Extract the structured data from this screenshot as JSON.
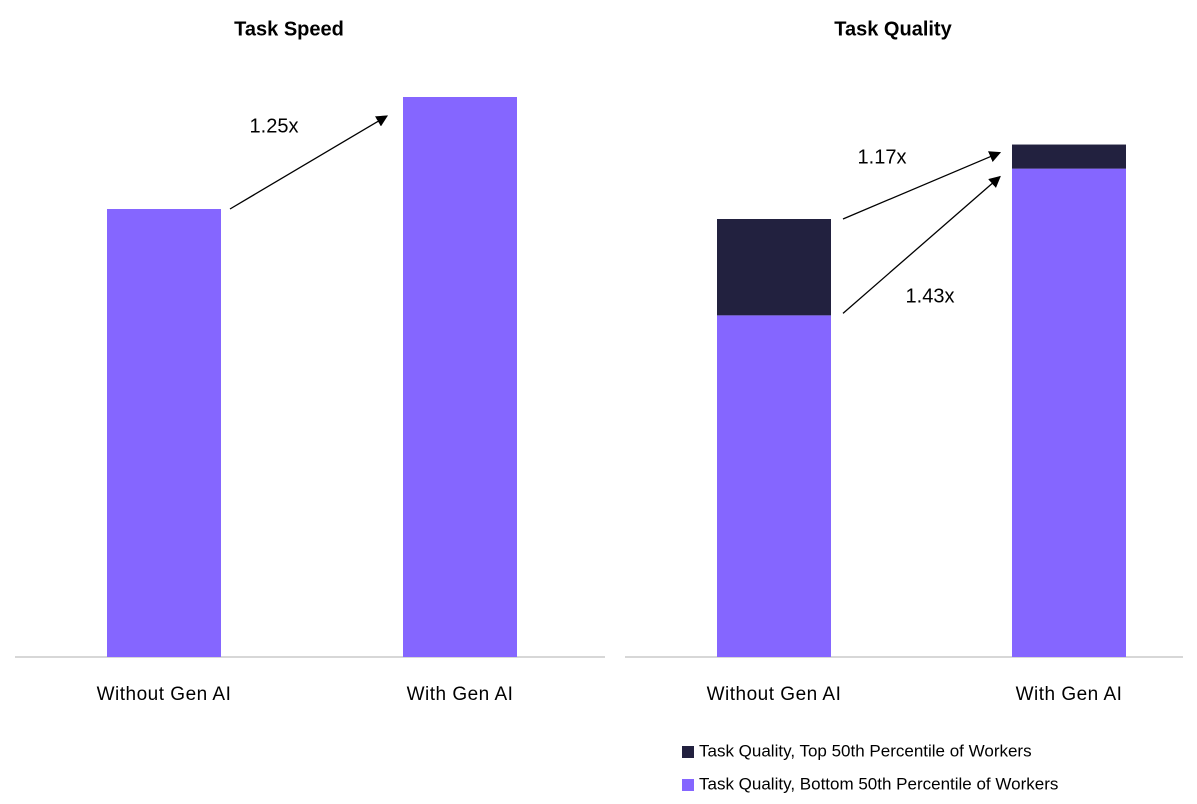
{
  "chart_data": [
    {
      "type": "bar",
      "title": "Task Speed",
      "categories": [
        "Without Gen AI",
        "With Gen AI"
      ],
      "values": [
        100,
        125
      ],
      "color": "#8566ff",
      "ylim": [
        0,
        140
      ],
      "annotations": [
        "1.25x"
      ]
    },
    {
      "type": "bar",
      "title": "Task Quality",
      "stacked": true,
      "categories": [
        "Without Gen AI",
        "With Gen AI"
      ],
      "series": [
        {
          "name": "Task Quality, Bottom 50th Percentile of Workers",
          "color": "#8566ff",
          "values": [
            78,
            111.5
          ]
        },
        {
          "name": "Task Quality, Top 50th Percentile of Workers",
          "color": "#22213f",
          "values": [
            22,
            5.5
          ]
        }
      ],
      "ylim": [
        0,
        140
      ],
      "annotations": [
        "1.17x",
        "1.43x"
      ]
    }
  ]
}
